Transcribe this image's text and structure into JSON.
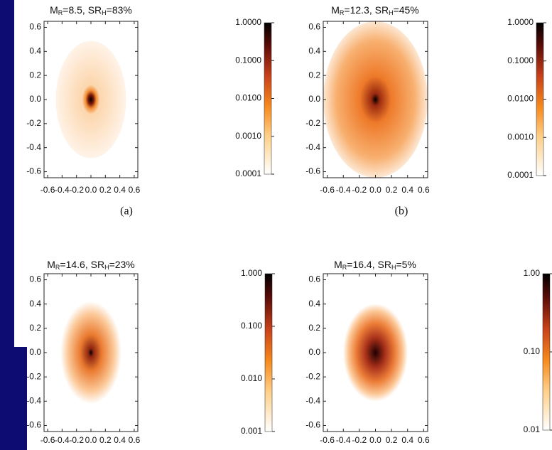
{
  "chart_data": [
    {
      "type": "image",
      "title_parts": [
        {
          "text": "M"
        },
        {
          "text": "R",
          "sub": true
        },
        {
          "text": "=8.5, SR"
        },
        {
          "text": "H",
          "sub": true
        },
        {
          "text": "=83%"
        }
      ],
      "panel_label": "(a)",
      "xlim": [
        -0.65,
        0.65
      ],
      "ylim": [
        -0.65,
        0.65
      ],
      "xticks": [
        -0.6,
        -0.4,
        -0.2,
        {
          "value": 0,
          "label": "0.0"
        },
        0.2,
        0.4,
        0.6
      ],
      "yticks": [
        -0.6,
        -0.4,
        -0.2,
        {
          "value": 0,
          "label": "0.0"
        },
        0.2,
        0.4,
        0.6
      ],
      "colorbar": {
        "log": true,
        "lim": [
          0.0001,
          1
        ],
        "ticks": [
          {
            "value": 1,
            "label": "1.0000"
          },
          {
            "value": 0.1,
            "label": "0.1000"
          },
          {
            "value": 0.01,
            "label": "0.0100"
          },
          {
            "value": 0.001,
            "label": "0.0010"
          },
          0.0001
        ]
      }
    },
    {
      "type": "image",
      "title_parts": [
        {
          "text": "M"
        },
        {
          "text": "R",
          "sub": true
        },
        {
          "text": "=12.3, SR"
        },
        {
          "text": "H",
          "sub": true
        },
        {
          "text": "=45%"
        }
      ],
      "panel_label": "(b)",
      "xlim": [
        -0.65,
        0.65
      ],
      "ylim": [
        -0.65,
        0.65
      ],
      "xticks": [
        -0.6,
        -0.4,
        -0.2,
        {
          "value": 0,
          "label": "0.0"
        },
        0.2,
        0.4,
        0.6
      ],
      "yticks": [
        -0.6,
        -0.4,
        -0.2,
        {
          "value": 0,
          "label": "0.0"
        },
        0.2,
        0.4,
        0.6
      ],
      "colorbar": {
        "log": true,
        "lim": [
          0.0001,
          1
        ],
        "ticks": [
          {
            "value": 1,
            "label": "1.0000"
          },
          {
            "value": 0.1,
            "label": "0.1000"
          },
          {
            "value": 0.01,
            "label": "0.0100"
          },
          {
            "value": 0.001,
            "label": "0.0010"
          },
          0.0001
        ]
      }
    },
    {
      "type": "image",
      "title_parts": [
        {
          "text": "M"
        },
        {
          "text": "R",
          "sub": true
        },
        {
          "text": "=14.6, SR"
        },
        {
          "text": "H",
          "sub": true
        },
        {
          "text": "=23%"
        }
      ],
      "xlim": [
        -0.65,
        0.65
      ],
      "ylim": [
        -0.65,
        0.65
      ],
      "xticks": [
        -0.6,
        -0.4,
        -0.2,
        {
          "value": 0,
          "label": "0.0"
        },
        0.2,
        0.4,
        0.6
      ],
      "yticks": [
        -0.6,
        -0.4,
        -0.2,
        {
          "value": 0,
          "label": "0.0"
        },
        0.2,
        0.4,
        0.6
      ],
      "colorbar": {
        "log": true,
        "lim": [
          0.001,
          1
        ],
        "ticks": [
          {
            "value": 1,
            "label": "1.000"
          },
          {
            "value": 0.1,
            "label": "0.100"
          },
          {
            "value": 0.01,
            "label": "0.010"
          },
          0.001
        ]
      }
    },
    {
      "type": "image",
      "title_parts": [
        {
          "text": "M"
        },
        {
          "text": "R",
          "sub": true
        },
        {
          "text": "=16.4, SR"
        },
        {
          "text": "H",
          "sub": true
        },
        {
          "text": "=5%"
        }
      ],
      "xlim": [
        -0.65,
        0.65
      ],
      "ylim": [
        -0.65,
        0.65
      ],
      "xticks": [
        -0.6,
        -0.4,
        -0.2,
        {
          "value": 0,
          "label": "0.0"
        },
        0.2,
        0.4,
        0.6
      ],
      "yticks": [
        -0.6,
        -0.4,
        -0.2,
        {
          "value": 0,
          "label": "0.0"
        },
        0.2,
        0.4,
        0.6
      ],
      "colorbar": {
        "log": true,
        "lim": [
          0.01,
          1
        ],
        "ticks": [
          {
            "value": 1,
            "label": "1.00"
          },
          {
            "value": 0.1,
            "label": "0.10"
          },
          0.01
        ]
      }
    }
  ]
}
